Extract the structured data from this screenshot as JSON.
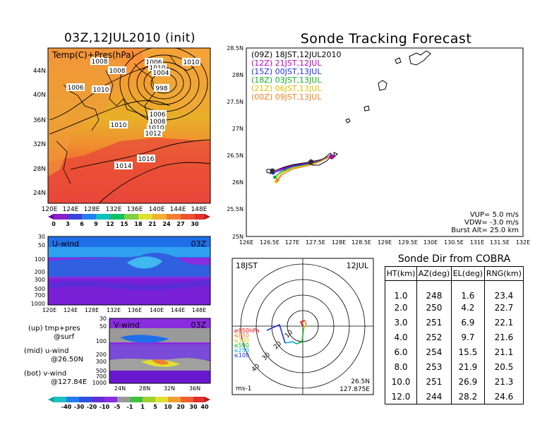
{
  "map_panel": {
    "title": "03Z,12JUL2010 (init)",
    "label": "Temp(C)+Pres(hPa)",
    "lat_ticks": [
      "44N",
      "40N",
      "36N",
      "32N",
      "28N",
      "24N"
    ],
    "lon_ticks": [
      "120E",
      "124E",
      "128E",
      "132E",
      "136E",
      "140E",
      "144E",
      "148E"
    ],
    "contour_labels": [
      "1008",
      "1008",
      "1006",
      "1010",
      "1006",
      "1010",
      "1010",
      "1004",
      "998",
      "1006",
      "1008",
      "1010",
      "1012",
      "1010",
      "1016",
      "1014"
    ],
    "colorbar_ticks": [
      "0",
      "3",
      "6",
      "9",
      "12",
      "15",
      "18",
      "21",
      "24",
      "27",
      "30"
    ]
  },
  "uwind_panel": {
    "label": "U-wind",
    "time": "03Z",
    "y_ticks": [
      "30",
      "50",
      "100",
      "200",
      "300",
      "500",
      "700",
      "1000"
    ],
    "x_ticks": [
      "120E",
      "124E",
      "128E",
      "132E",
      "136E",
      "140E",
      "144E",
      "148E"
    ]
  },
  "vwind_panel": {
    "label": "V-wind",
    "time": "03Z",
    "y_ticks": [
      "30",
      "50",
      "100",
      "200",
      "300",
      "500",
      "700",
      "1000"
    ],
    "x_ticks": [
      "24N",
      "28N",
      "32N",
      "36N"
    ]
  },
  "notes": {
    "up_1": "(up) tmp+pres",
    "up_2": "@surf",
    "mid_1": "(mid) u-wind",
    "mid_2": "@26.50N",
    "bot_1": "(bot) v-wind",
    "bot_2": "@127.84E"
  },
  "wind_colorbar_ticks": [
    "-40",
    "-30",
    "-20",
    "-10",
    "-5",
    "-1",
    "1",
    "5",
    "10",
    "20",
    "30",
    "40"
  ],
  "tracking": {
    "title": "Sonde Tracking Forecast",
    "legend": [
      {
        "text": "(09Z)  18JST,12JUL2010",
        "color": "#000000"
      },
      {
        "text": "(12Z)  21JST,12JUL",
        "color": "#c000c0"
      },
      {
        "text": "(15Z)  00JST,13JUL",
        "color": "#2030e0"
      },
      {
        "text": "(18Z)  03JST,13JUL",
        "color": "#10b020"
      },
      {
        "text": "(21Z)  06JST,13JUL",
        "color": "#e0c000"
      },
      {
        "text": "(00Z)  09JST,13JUL",
        "color": "#f08020"
      }
    ],
    "lat_ticks": [
      "28.5N",
      "28N",
      "27.5N",
      "27N",
      "26.5N",
      "26N",
      "25.5N",
      "25N"
    ],
    "lon_ticks": [
      "126E",
      "126.5E",
      "127E",
      "127.5E",
      "128E",
      "128.5E",
      "129E",
      "129.5E",
      "130E",
      "130.5E",
      "131E",
      "131.5E",
      "132E"
    ],
    "vup": "VUP=  5.0  m/s",
    "vdw": "VDW= -3.0  m/s",
    "burst": "Burst Alt=  25.0  km"
  },
  "hodo": {
    "time_label": "18JST",
    "date_label": "12JUL",
    "lat_label": "26.5N",
    "lon_label": "127.875E",
    "unit_label": "ms-1",
    "ring_labels": [
      "10",
      "20",
      "30",
      "40"
    ],
    "levels": [
      {
        "text": "≥850hPa",
        "color": "#ff0000"
      },
      {
        "text": "≤850",
        "color": "#f08020"
      },
      {
        "text": "≤700",
        "color": "#e0c000"
      },
      {
        "text": "≤500",
        "color": "#10b020"
      },
      {
        "text": "≤250",
        "color": "#00b0e0"
      },
      {
        "text": "≤100",
        "color": "#2030e0"
      }
    ]
  },
  "table": {
    "title": "Sonde Dir from COBRA",
    "headers": [
      "HT(km)",
      "AZ(deg)",
      "EL(deg)",
      "RNG(km)"
    ],
    "rows": [
      [
        "1.0",
        "248",
        "1.6",
        "23.4"
      ],
      [
        "2.0",
        "250",
        "4.2",
        "22.7"
      ],
      [
        "3.0",
        "251",
        "6.9",
        "22.1"
      ],
      [
        "4.0",
        "252",
        "9.7",
        "21.6"
      ],
      [
        "6.0",
        "254",
        "15.5",
        "21.1"
      ],
      [
        "8.0",
        "253",
        "21.9",
        "20.5"
      ],
      [
        "10.0",
        "251",
        "26.9",
        "21.3"
      ],
      [
        "12.0",
        "244",
        "28.2",
        "24.6"
      ]
    ]
  },
  "chart_data": [
    {
      "type": "heatmap",
      "title": "03Z,12JUL2010 (init)",
      "label": "Temp(C)+Pres(hPa)",
      "xlim": [
        120,
        150
      ],
      "ylim": [
        22,
        48
      ],
      "colorbar": [
        0,
        3,
        6,
        9,
        12,
        15,
        18,
        21,
        24,
        27,
        30
      ]
    },
    {
      "type": "line",
      "title": "Sonde Tracking Forecast",
      "xlim": [
        126,
        132
      ],
      "ylim": [
        25,
        28.5
      ],
      "series": [
        {
          "name": "(09Z)  18JST,12JUL2010",
          "color": "#000000",
          "x": [
            127.84,
            127.6,
            127.38,
            127.0,
            126.8,
            126.55
          ],
          "y": [
            26.5,
            26.42,
            26.38,
            26.33,
            26.28,
            26.2
          ]
        },
        {
          "name": "(12Z)  21JST,12JUL",
          "color": "#c000c0",
          "x": [
            127.84,
            127.6,
            127.38,
            127.0,
            126.75,
            126.55
          ],
          "y": [
            26.5,
            26.41,
            26.37,
            26.31,
            26.25,
            26.2
          ]
        },
        {
          "name": "(15Z)  00JST,13JUL",
          "color": "#2030e0",
          "x": [
            127.84,
            127.6,
            127.38,
            127.0,
            126.72,
            126.58
          ],
          "y": [
            26.5,
            26.4,
            26.36,
            26.3,
            26.22,
            26.18
          ]
        },
        {
          "name": "(18Z)  03JST,13JUL",
          "color": "#10b020",
          "x": [
            127.84,
            127.6,
            127.4,
            127.0,
            126.75,
            126.62
          ],
          "y": [
            26.5,
            26.4,
            26.35,
            26.28,
            26.2,
            26.1
          ]
        },
        {
          "name": "(21Z)  06JST,13JUL",
          "color": "#e0c000",
          "x": [
            127.84,
            127.6,
            127.4,
            127.0,
            126.76,
            126.65
          ],
          "y": [
            26.5,
            26.39,
            26.34,
            26.27,
            26.18,
            26.02
          ]
        },
        {
          "name": "(00Z)  09JST,13JUL",
          "color": "#f08020",
          "x": [
            127.84,
            127.6,
            127.4,
            127.0,
            126.78,
            126.68
          ],
          "y": [
            26.5,
            26.39,
            26.33,
            26.25,
            26.15,
            26.05
          ]
        }
      ]
    },
    {
      "type": "table",
      "title": "Sonde Dir from COBRA",
      "columns": [
        "HT(km)",
        "AZ(deg)",
        "EL(deg)",
        "RNG(km)"
      ],
      "rows": [
        [
          1.0,
          248,
          1.6,
          23.4
        ],
        [
          2.0,
          250,
          4.2,
          22.7
        ],
        [
          3.0,
          251,
          6.9,
          22.1
        ],
        [
          4.0,
          252,
          9.7,
          21.6
        ],
        [
          6.0,
          254,
          15.5,
          21.1
        ],
        [
          8.0,
          253,
          21.9,
          20.5
        ],
        [
          10.0,
          251,
          26.9,
          21.3
        ],
        [
          12.0,
          244,
          28.2,
          24.6
        ]
      ]
    }
  ]
}
